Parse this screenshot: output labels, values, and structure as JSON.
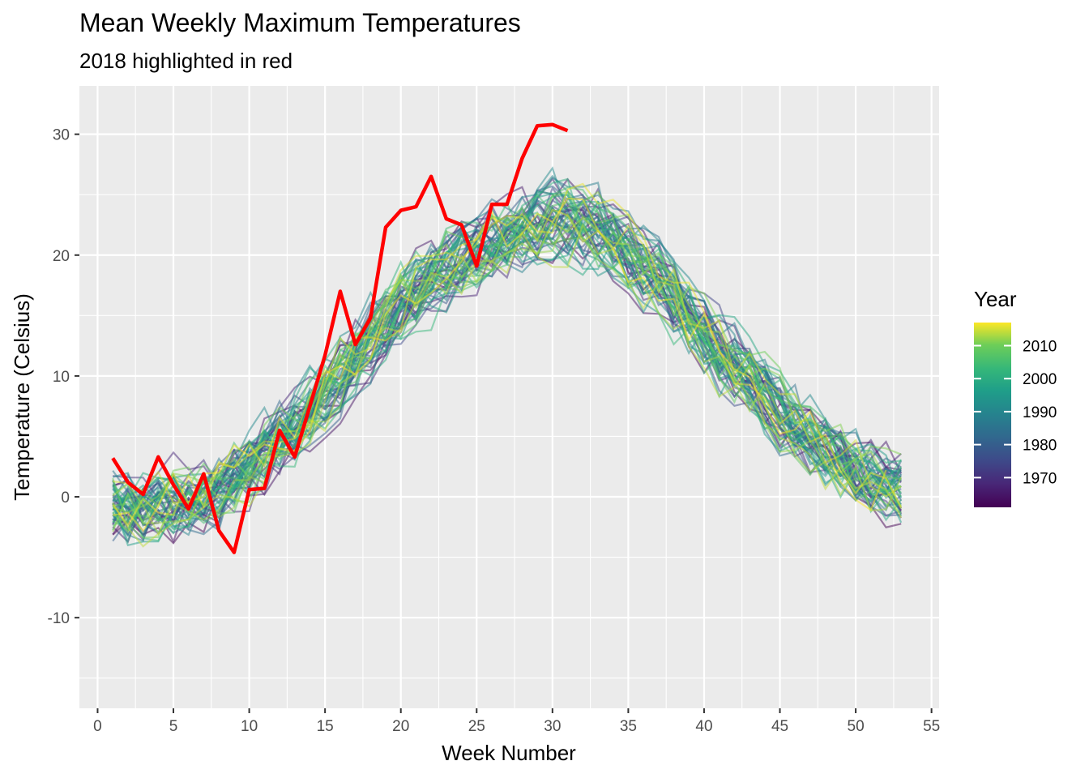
{
  "chart_data": {
    "type": "line",
    "title": "Mean Weekly Maximum Temperatures",
    "subtitle": "2018 highlighted in red",
    "xlabel": "Week Number",
    "ylabel": "Temperature (Celsius)",
    "xlim": [
      -1.2,
      55.5
    ],
    "ylim": [
      -17.5,
      34
    ],
    "x_ticks": [
      0,
      5,
      10,
      15,
      20,
      25,
      30,
      35,
      40,
      45,
      50,
      55
    ],
    "y_ticks": [
      -10,
      0,
      10,
      20,
      30
    ],
    "grid": true,
    "legend": {
      "title": "Year",
      "placement": "right",
      "range": [
        1961,
        2017
      ],
      "ticks": [
        1970,
        1980,
        1990,
        2000,
        2010
      ],
      "colormap": "viridis"
    },
    "background_series": {
      "name": "years 1961-2017",
      "years": [
        1961,
        2017
      ],
      "weeks": [
        1,
        53
      ],
      "typical_mean_by_week": [
        -0.5,
        -1.0,
        -1.0,
        -0.8,
        -0.5,
        -0.3,
        0.0,
        0.5,
        1.5,
        2.5,
        3.5,
        4.5,
        5.5,
        7.0,
        8.5,
        10.0,
        11.5,
        13.0,
        14.5,
        16.0,
        17.0,
        18.0,
        19.0,
        20.0,
        20.5,
        21.0,
        21.5,
        22.0,
        22.5,
        23.0,
        23.0,
        22.5,
        22.0,
        21.0,
        20.0,
        19.0,
        18.0,
        16.5,
        15.0,
        13.5,
        12.0,
        11.0,
        10.0,
        8.5,
        7.0,
        6.0,
        5.0,
        4.0,
        3.0,
        2.0,
        1.5,
        1.0,
        0.5
      ],
      "spread": 3.0
    },
    "highlight_series": {
      "name": "2018",
      "color": "#ff0000",
      "x": [
        1,
        2,
        3,
        4,
        5,
        6,
        7,
        8,
        9,
        10,
        11,
        12,
        13,
        14,
        15,
        16,
        17,
        18,
        19,
        20,
        21,
        22,
        23,
        24,
        25,
        26,
        27,
        28,
        29,
        30,
        31
      ],
      "values": [
        3.2,
        1.2,
        0.2,
        3.3,
        1.0,
        -1.0,
        1.9,
        -2.8,
        -4.6,
        0.6,
        0.7,
        5.5,
        3.3,
        7.5,
        11.7,
        17.0,
        12.6,
        14.8,
        22.3,
        23.7,
        24.0,
        26.5,
        23.0,
        22.5,
        19.1,
        24.2,
        24.2,
        28.0,
        30.7,
        30.8,
        30.3
      ]
    }
  }
}
